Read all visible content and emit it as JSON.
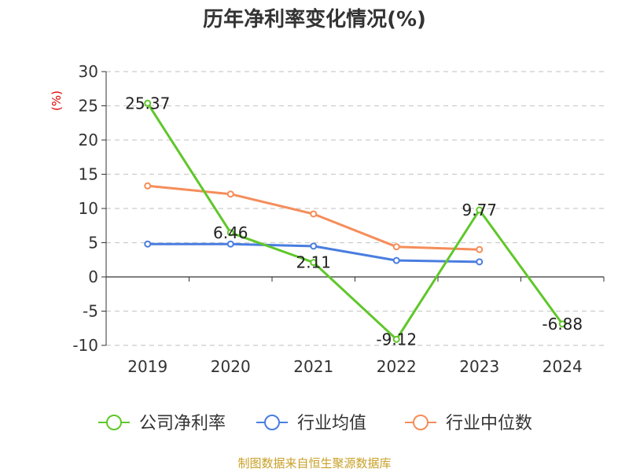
{
  "chart_data": {
    "type": "line",
    "title": "历年净利率变化情况(%)",
    "unit_label": "(%)",
    "categories": [
      "2019",
      "2020",
      "2021",
      "2022",
      "2023",
      "2024"
    ],
    "ylim": [
      -10,
      30
    ],
    "yticks": [
      -10,
      -5,
      0,
      5,
      10,
      15,
      20,
      25,
      30
    ],
    "grid": true,
    "legend_position": "bottom",
    "series": [
      {
        "name": "公司净利率",
        "color": "#5fc72a",
        "values": [
          25.37,
          6.46,
          2.11,
          -9.12,
          9.77,
          -6.88
        ],
        "labels": [
          "25.37",
          "6.46",
          "2.11",
          "-9.12",
          "9.77",
          "-6.88"
        ]
      },
      {
        "name": "行业均值",
        "color": "#4a7de0",
        "values": [
          4.8,
          4.8,
          4.5,
          2.4,
          2.2,
          null
        ]
      },
      {
        "name": "行业中位数",
        "color": "#f58d5a",
        "values": [
          13.3,
          12.1,
          9.2,
          4.4,
          4.0,
          null
        ]
      }
    ]
  },
  "source": "制图数据来自恒生聚源数据库"
}
